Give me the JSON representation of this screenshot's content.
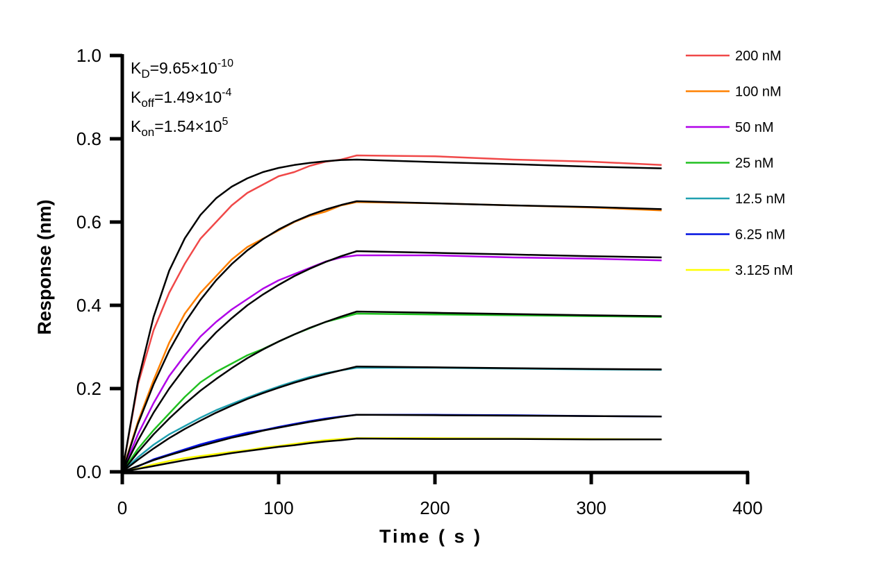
{
  "chart_data": {
    "type": "line",
    "xlabel": "Time ( s )",
    "ylabel": "Response (nm)",
    "xlim": [
      0,
      400
    ],
    "ylim": [
      0,
      1.0
    ],
    "xticks": [
      "0",
      "100",
      "200",
      "300",
      "400"
    ],
    "yticks": [
      "0.0",
      "0.2",
      "0.4",
      "0.6",
      "0.8",
      "1.0"
    ],
    "grid": false,
    "legend_position": "top-right",
    "annotations": {
      "kd": {
        "main": "K",
        "sub": "D",
        "value": "=9.65×10",
        "exp": "-10"
      },
      "koff": {
        "main": "K",
        "sub": "off",
        "value": "=1.49×10",
        "exp": "-4"
      },
      "kon": {
        "main": "K",
        "sub": "on",
        "value": "=1.54×10",
        "exp": "5"
      }
    },
    "x": [
      0,
      10,
      20,
      30,
      40,
      50,
      60,
      70,
      80,
      90,
      100,
      110,
      120,
      130,
      140,
      150,
      200,
      250,
      300,
      345
    ],
    "fit_color": "#000000",
    "series": [
      {
        "name": "200 nM",
        "color": "#f04848",
        "values": [
          0,
          0.21,
          0.34,
          0.43,
          0.5,
          0.56,
          0.6,
          0.64,
          0.67,
          0.69,
          0.71,
          0.72,
          0.735,
          0.745,
          0.75,
          0.76,
          0.758,
          0.75,
          0.745,
          0.737
        ],
        "fit": [
          0,
          0.217,
          0.372,
          0.483,
          0.561,
          0.617,
          0.657,
          0.685,
          0.705,
          0.72,
          0.73,
          0.737,
          0.742,
          0.746,
          0.749,
          0.75,
          0.744,
          0.739,
          0.733,
          0.729
        ]
      },
      {
        "name": "100 nM",
        "color": "#ff8000",
        "values": [
          0,
          0.12,
          0.22,
          0.31,
          0.38,
          0.43,
          0.47,
          0.51,
          0.54,
          0.56,
          0.58,
          0.6,
          0.615,
          0.625,
          0.64,
          0.648,
          0.645,
          0.64,
          0.635,
          0.628
        ],
        "fit": [
          0,
          0.115,
          0.21,
          0.291,
          0.358,
          0.413,
          0.46,
          0.499,
          0.532,
          0.559,
          0.582,
          0.601,
          0.617,
          0.63,
          0.641,
          0.65,
          0.645,
          0.64,
          0.636,
          0.631
        ]
      },
      {
        "name": "50 nM",
        "color": "#b000e8",
        "values": [
          0,
          0.09,
          0.165,
          0.23,
          0.28,
          0.325,
          0.36,
          0.39,
          0.415,
          0.44,
          0.46,
          0.475,
          0.49,
          0.505,
          0.515,
          0.52,
          0.52,
          0.515,
          0.512,
          0.508
        ],
        "fit": [
          0,
          0.075,
          0.142,
          0.2,
          0.25,
          0.295,
          0.335,
          0.369,
          0.4,
          0.426,
          0.449,
          0.47,
          0.488,
          0.504,
          0.518,
          0.53,
          0.526,
          0.522,
          0.518,
          0.515
        ]
      },
      {
        "name": "25 nM",
        "color": "#20c020",
        "values": [
          0,
          0.055,
          0.1,
          0.14,
          0.18,
          0.215,
          0.24,
          0.26,
          0.28,
          0.295,
          0.313,
          0.33,
          0.345,
          0.36,
          0.37,
          0.38,
          0.378,
          0.376,
          0.374,
          0.372
        ],
        "fit": [
          0,
          0.047,
          0.09,
          0.128,
          0.163,
          0.195,
          0.223,
          0.249,
          0.273,
          0.294,
          0.313,
          0.33,
          0.346,
          0.36,
          0.373,
          0.385,
          0.382,
          0.379,
          0.376,
          0.374
        ]
      },
      {
        "name": "12.5 nM",
        "color": "#20a0b0",
        "values": [
          0,
          0.035,
          0.065,
          0.09,
          0.11,
          0.13,
          0.148,
          0.163,
          0.178,
          0.192,
          0.205,
          0.217,
          0.228,
          0.237,
          0.244,
          0.25,
          0.25,
          0.248,
          0.246,
          0.245
        ],
        "fit": [
          0,
          0.029,
          0.056,
          0.081,
          0.103,
          0.123,
          0.142,
          0.159,
          0.175,
          0.189,
          0.202,
          0.214,
          0.225,
          0.235,
          0.244,
          0.253,
          0.251,
          0.249,
          0.247,
          0.246
        ]
      },
      {
        "name": "6.25 nM",
        "color": "#0010e0",
        "values": [
          0,
          0.013,
          0.03,
          0.042,
          0.054,
          0.066,
          0.076,
          0.085,
          0.094,
          0.1,
          0.108,
          0.115,
          0.122,
          0.128,
          0.133,
          0.137,
          0.137,
          0.136,
          0.134,
          0.133
        ],
        "fit": [
          0,
          0.014,
          0.028,
          0.04,
          0.051,
          0.062,
          0.072,
          0.082,
          0.09,
          0.099,
          0.106,
          0.113,
          0.12,
          0.126,
          0.132,
          0.137,
          0.136,
          0.135,
          0.134,
          0.133
        ]
      },
      {
        "name": "3.125 nM",
        "color": "#ffff00",
        "values": [
          0,
          0.008,
          0.018,
          0.026,
          0.033,
          0.038,
          0.043,
          0.048,
          0.052,
          0.058,
          0.062,
          0.067,
          0.072,
          0.076,
          0.079,
          0.081,
          0.081,
          0.08,
          0.079,
          0.078
        ],
        "fit": [
          0,
          0.007,
          0.014,
          0.021,
          0.028,
          0.034,
          0.039,
          0.045,
          0.05,
          0.055,
          0.06,
          0.064,
          0.069,
          0.073,
          0.076,
          0.08,
          0.079,
          0.079,
          0.078,
          0.078
        ]
      }
    ]
  }
}
